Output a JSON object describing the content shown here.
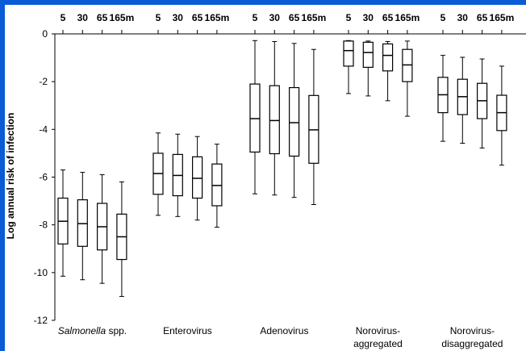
{
  "chart_data": {
    "type": "boxplot",
    "ylabel": "Log annual risk of infection",
    "ylim": [
      -12,
      0
    ],
    "yticks": [
      0,
      -2,
      -4,
      -6,
      -8,
      -10,
      -12
    ],
    "colors": {
      "frame": "#0a5bd6",
      "box": "#000000",
      "background": "#ffffff"
    },
    "depths": [
      "5",
      "30",
      "65",
      "165m"
    ],
    "groups": [
      {
        "label": "Salmonella",
        "label_suffix": " spp.",
        "label_italic": true,
        "boxes": [
          {
            "depth": "5",
            "min": -10.15,
            "q1": -8.8,
            "median": -7.85,
            "q3": -6.88,
            "max": -5.7
          },
          {
            "depth": "30",
            "min": -10.3,
            "q1": -8.9,
            "median": -7.95,
            "q3": -6.95,
            "max": -5.8
          },
          {
            "depth": "65",
            "min": -10.45,
            "q1": -9.05,
            "median": -8.08,
            "q3": -7.1,
            "max": -5.9
          },
          {
            "depth": "165m",
            "min": -11.0,
            "q1": -9.45,
            "median": -8.5,
            "q3": -7.55,
            "max": -6.2
          }
        ]
      },
      {
        "label": "Enterovirus",
        "boxes": [
          {
            "depth": "5",
            "min": -7.6,
            "q1": -6.72,
            "median": -5.85,
            "q3": -5.0,
            "max": -4.15
          },
          {
            "depth": "30",
            "min": -7.65,
            "q1": -6.78,
            "median": -5.93,
            "q3": -5.05,
            "max": -4.2
          },
          {
            "depth": "65",
            "min": -7.8,
            "q1": -6.88,
            "median": -6.05,
            "q3": -5.15,
            "max": -4.3
          },
          {
            "depth": "165m",
            "min": -8.1,
            "q1": -7.2,
            "median": -6.35,
            "q3": -5.45,
            "max": -4.62
          }
        ]
      },
      {
        "label": "Adenovirus",
        "boxes": [
          {
            "depth": "5",
            "min": -6.7,
            "q1": -4.95,
            "median": -3.55,
            "q3": -2.1,
            "max": -0.28
          },
          {
            "depth": "30",
            "min": -6.75,
            "q1": -5.02,
            "median": -3.63,
            "q3": -2.17,
            "max": -0.32
          },
          {
            "depth": "65",
            "min": -6.85,
            "q1": -5.12,
            "median": -3.72,
            "q3": -2.25,
            "max": -0.4
          },
          {
            "depth": "165m",
            "min": -7.15,
            "q1": -5.42,
            "median": -4.02,
            "q3": -2.58,
            "max": -0.65
          }
        ]
      },
      {
        "label": "Norovirus-",
        "label2": "aggregated",
        "boxes": [
          {
            "depth": "5",
            "min": -2.5,
            "q1": -1.35,
            "median": -0.7,
            "q3": -0.3,
            "max": -0.28
          },
          {
            "depth": "30",
            "min": -2.6,
            "q1": -1.4,
            "median": -0.78,
            "q3": -0.35,
            "max": -0.3
          },
          {
            "depth": "65",
            "min": -2.8,
            "q1": -1.55,
            "median": -0.9,
            "q3": -0.42,
            "max": -0.32
          },
          {
            "depth": "165m",
            "min": -3.45,
            "q1": -2.0,
            "median": -1.3,
            "q3": -0.65,
            "max": -0.3
          }
        ]
      },
      {
        "label": "Norovirus-",
        "label2": "disaggregated",
        "boxes": [
          {
            "depth": "5",
            "min": -4.5,
            "q1": -3.3,
            "median": -2.55,
            "q3": -1.82,
            "max": -0.9
          },
          {
            "depth": "30",
            "min": -4.58,
            "q1": -3.38,
            "median": -2.63,
            "q3": -1.9,
            "max": -0.98
          },
          {
            "depth": "65",
            "min": -4.78,
            "q1": -3.55,
            "median": -2.8,
            "q3": -2.07,
            "max": -1.05
          },
          {
            "depth": "165m",
            "min": -5.5,
            "q1": -4.05,
            "median": -3.3,
            "q3": -2.57,
            "max": -1.35
          }
        ]
      }
    ]
  }
}
